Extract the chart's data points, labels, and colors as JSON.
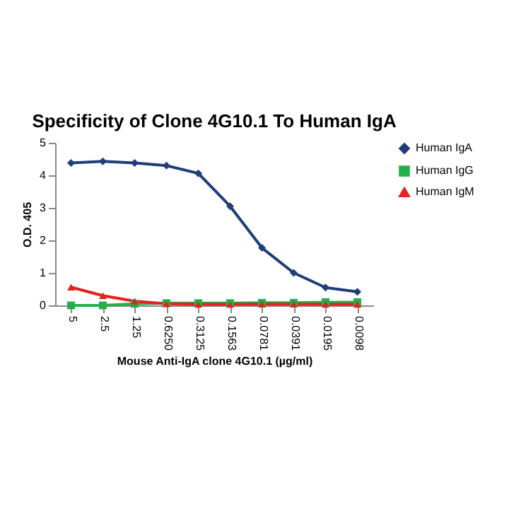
{
  "chart_data": {
    "type": "line",
    "title": "Specificity of Clone 4G10.1 To Human IgA",
    "xlabel": "Mouse Anti-IgA clone 4G10.1 (µg/ml)",
    "ylabel": "O.D. 405",
    "categories": [
      "5",
      "2.5",
      "1.25",
      "0.6250",
      "0.3125",
      "0.1563",
      "0.0781",
      "0.0391",
      "0.0195",
      "0.0098"
    ],
    "series": [
      {
        "name": "Human IgA",
        "color": "#1f3d7a",
        "marker": "diamond",
        "values": [
          4.38,
          4.43,
          4.38,
          4.3,
          4.06,
          3.05,
          1.77,
          1.0,
          0.55,
          0.42
        ]
      },
      {
        "name": "Human IgG",
        "color": "#22b04b",
        "marker": "square",
        "values": [
          0,
          0,
          0.05,
          0.07,
          0.07,
          0.07,
          0.08,
          0.08,
          0.1,
          0.1
        ]
      },
      {
        "name": "Human IgM",
        "color": "#e8201e",
        "marker": "triangle",
        "values": [
          0.56,
          0.3,
          0.13,
          0.05,
          0.03,
          0.03,
          0.04,
          0.04,
          0.03,
          0.03
        ]
      }
    ],
    "ylim": [
      0,
      5
    ],
    "yticks": [
      0,
      1,
      2,
      3,
      4,
      5
    ],
    "grid": false,
    "legend": "right",
    "line_style": "solid"
  }
}
